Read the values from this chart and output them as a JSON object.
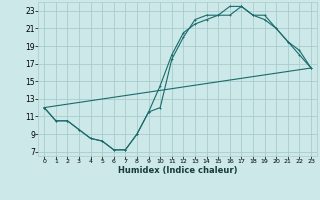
{
  "xlabel": "Humidex (Indice chaleur)",
  "bg_color": "#cce8e8",
  "grid_color": "#aacccc",
  "line_color": "#1a6b6b",
  "xlim": [
    -0.5,
    23.5
  ],
  "ylim": [
    6.5,
    24.0
  ],
  "xticks": [
    0,
    1,
    2,
    3,
    4,
    5,
    6,
    7,
    8,
    9,
    10,
    11,
    12,
    13,
    14,
    15,
    16,
    17,
    18,
    19,
    20,
    21,
    22,
    23
  ],
  "yticks": [
    7,
    9,
    11,
    13,
    15,
    17,
    19,
    21,
    23
  ],
  "line1_x": [
    0,
    1,
    2,
    3,
    4,
    5,
    6,
    7,
    8,
    9,
    10,
    11,
    12,
    13,
    14,
    15,
    16,
    17,
    18,
    19,
    20,
    21,
    22,
    23
  ],
  "line1_y": [
    12,
    10.5,
    10.5,
    9.5,
    8.5,
    8.2,
    7.2,
    7.2,
    9.0,
    11.5,
    14.5,
    18.0,
    20.5,
    21.5,
    22.0,
    22.5,
    23.5,
    23.5,
    22.5,
    22.5,
    21.0,
    19.5,
    18.5,
    16.5
  ],
  "line2_x": [
    0,
    1,
    2,
    3,
    4,
    5,
    6,
    7,
    8,
    9,
    10,
    11,
    12,
    13,
    14,
    15,
    16,
    17,
    18,
    19,
    20,
    21,
    22,
    23
  ],
  "line2_y": [
    12,
    10.5,
    10.5,
    9.5,
    8.5,
    8.2,
    7.2,
    7.2,
    9.0,
    11.5,
    12.0,
    17.5,
    20.0,
    22.0,
    22.5,
    22.5,
    22.5,
    23.5,
    22.5,
    22.0,
    21.0,
    19.5,
    18.0,
    16.5
  ],
  "line3_x": [
    0,
    23
  ],
  "line3_y": [
    12,
    16.5
  ]
}
